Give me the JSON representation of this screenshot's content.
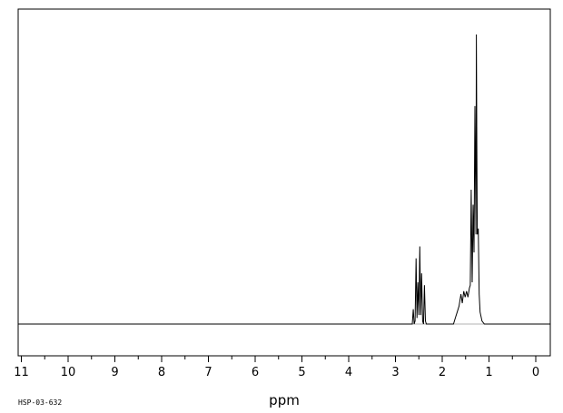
{
  "chart_data": {
    "type": "line",
    "title": "",
    "xlabel": "ppm",
    "ylabel": "",
    "spectrum_id": "HSP-03-632",
    "xlim": [
      11.5,
      -0.3
    ],
    "x_reversed": true,
    "grid": false,
    "major_ticks": [
      11,
      10,
      9,
      8,
      7,
      6,
      5,
      4,
      3,
      2,
      1,
      0
    ],
    "tick_labels": [
      "11",
      "10",
      "9",
      "8",
      "7",
      "6",
      "5",
      "4",
      "3",
      "2",
      "1",
      "0"
    ],
    "ylim": [
      -0.08,
      1.0
    ],
    "baseline": 0.0,
    "series": [
      {
        "values": [
          [
            11.6,
            0.0
          ],
          [
            2.64,
            0.0
          ],
          [
            2.62,
            0.05
          ],
          [
            2.6,
            0.0
          ],
          [
            2.58,
            0.01
          ],
          [
            2.56,
            0.22
          ],
          [
            2.54,
            0.02
          ],
          [
            2.52,
            0.14
          ],
          [
            2.5,
            0.03
          ],
          [
            2.48,
            0.26
          ],
          [
            2.46,
            0.03
          ],
          [
            2.44,
            0.17
          ],
          [
            2.42,
            0.01
          ],
          [
            2.4,
            0.0
          ],
          [
            2.38,
            0.13
          ],
          [
            2.36,
            0.01
          ],
          [
            2.34,
            0.0
          ],
          [
            1.76,
            0.0
          ],
          [
            1.72,
            0.02
          ],
          [
            1.68,
            0.04
          ],
          [
            1.64,
            0.06
          ],
          [
            1.6,
            0.1
          ],
          [
            1.57,
            0.07
          ],
          [
            1.54,
            0.11
          ],
          [
            1.51,
            0.09
          ],
          [
            1.48,
            0.11
          ],
          [
            1.45,
            0.09
          ],
          [
            1.42,
            0.12
          ],
          [
            1.4,
            0.13
          ],
          [
            1.38,
            0.45
          ],
          [
            1.36,
            0.14
          ],
          [
            1.34,
            0.4
          ],
          [
            1.32,
            0.24
          ],
          [
            1.3,
            0.73
          ],
          [
            1.28,
            0.3
          ],
          [
            1.27,
            0.97
          ],
          [
            1.26,
            0.6
          ],
          [
            1.25,
            0.3
          ],
          [
            1.23,
            0.32
          ],
          [
            1.21,
            0.1
          ],
          [
            1.19,
            0.04
          ],
          [
            1.15,
            0.01
          ],
          [
            1.1,
            0.0
          ],
          [
            -0.35,
            0.0
          ]
        ]
      }
    ]
  }
}
